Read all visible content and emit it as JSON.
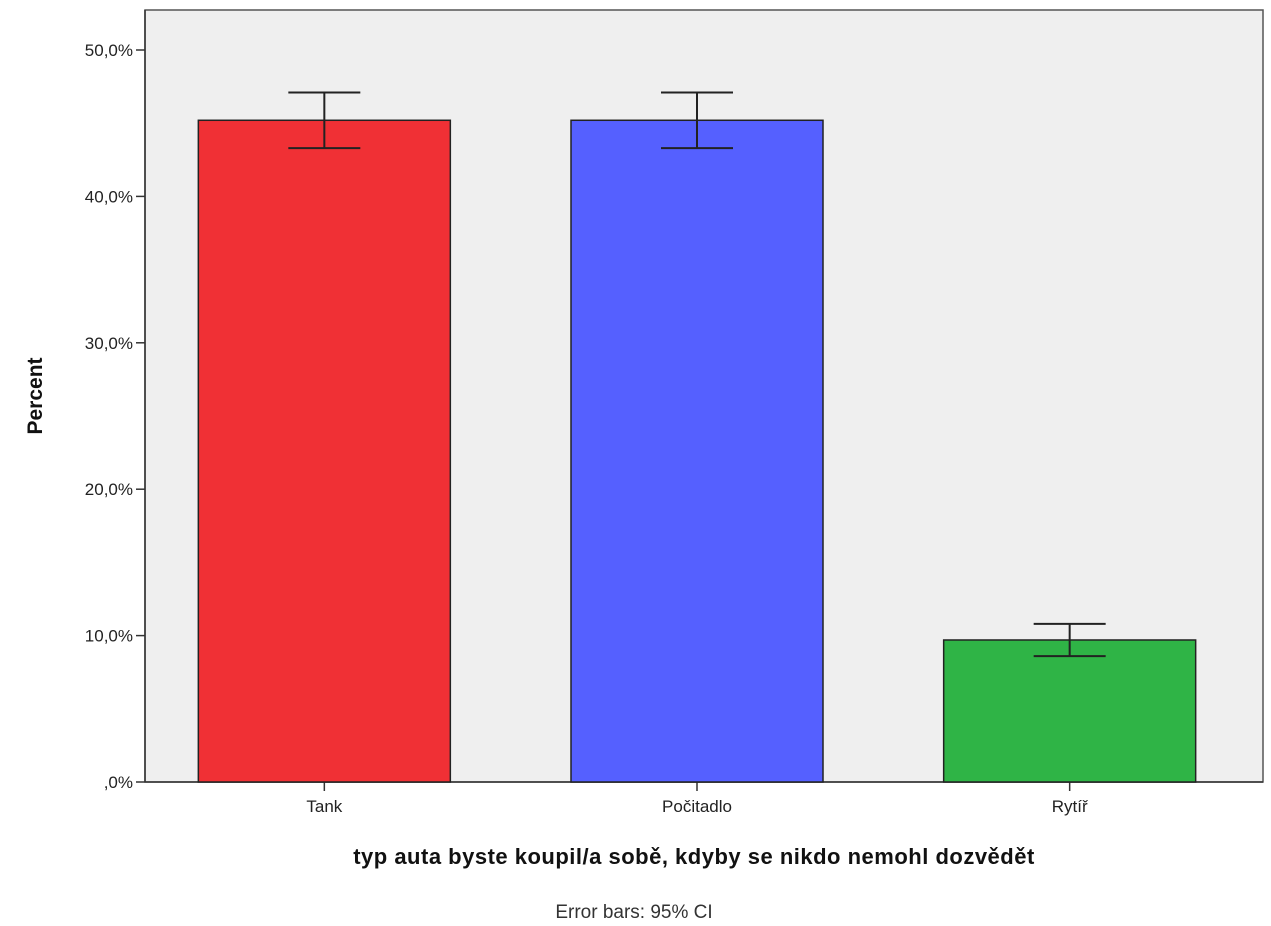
{
  "chart_data": {
    "type": "bar",
    "categories": [
      "Tank",
      "Počitadlo",
      "Rytíř"
    ],
    "values": [
      45.2,
      45.2,
      9.7
    ],
    "error_low": [
      43.3,
      43.3,
      8.6
    ],
    "error_high": [
      47.1,
      47.1,
      10.8
    ],
    "colors": [
      "#f03035",
      "#5560ff",
      "#2fb446"
    ],
    "xlabel": "typ auta byste koupil/a sobě, kdyby se nikdo nemohl dozvědět",
    "ylabel": "Percent",
    "ylim": [
      0,
      50
    ],
    "yticks": [
      0,
      10,
      20,
      30,
      40,
      50
    ],
    "ytick_labels": [
      ",0%",
      "10,0%",
      "20,0%",
      "30,0%",
      "40,0%",
      "50,0%"
    ],
    "footnote": "Error bars: 95% CI",
    "plot_background": "#efefef",
    "grid": false
  }
}
